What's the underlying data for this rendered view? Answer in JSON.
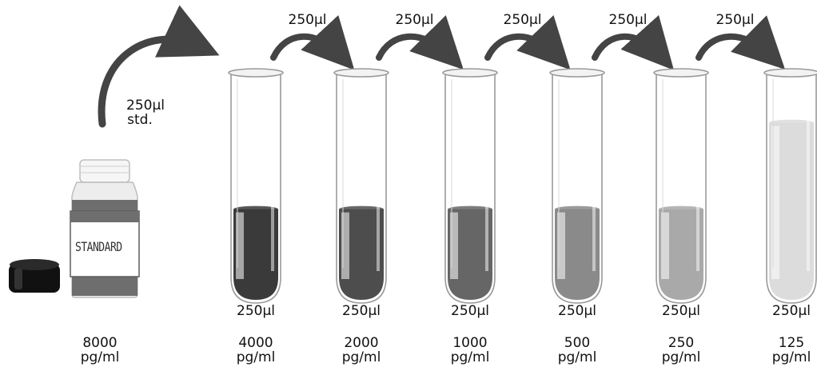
{
  "stock": {
    "label_text": "STANDARD",
    "concentration_value": "8000",
    "concentration_unit": "pg/ml"
  },
  "first_transfer": {
    "volume": "250µl",
    "note": "std."
  },
  "transfer_volume": "250µl",
  "tubes": [
    {
      "volume": "250µl",
      "value": "4000",
      "unit": "pg/ml",
      "fill": "#3a3a3a",
      "level": 0.42
    },
    {
      "volume": "250µl",
      "value": "2000",
      "unit": "pg/ml",
      "fill": "#4d4d4d",
      "level": 0.42
    },
    {
      "volume": "250µl",
      "value": "1000",
      "unit": "pg/ml",
      "fill": "#666666",
      "level": 0.42
    },
    {
      "volume": "250µl",
      "value": "500",
      "unit": "pg/ml",
      "fill": "#8a8a8a",
      "level": 0.42
    },
    {
      "volume": "250µl",
      "value": "250",
      "unit": "pg/ml",
      "fill": "#a9a9a9",
      "level": 0.42
    },
    {
      "volume": "250µl",
      "value": "125",
      "unit": "pg/ml",
      "fill": "#dcdcdc",
      "level": 0.82
    }
  ],
  "colors": {
    "arrow": "#444444",
    "cap": "#111111",
    "bottle_liquid": "#6e6e6e",
    "glass_outline": "#9a9a9a"
  }
}
